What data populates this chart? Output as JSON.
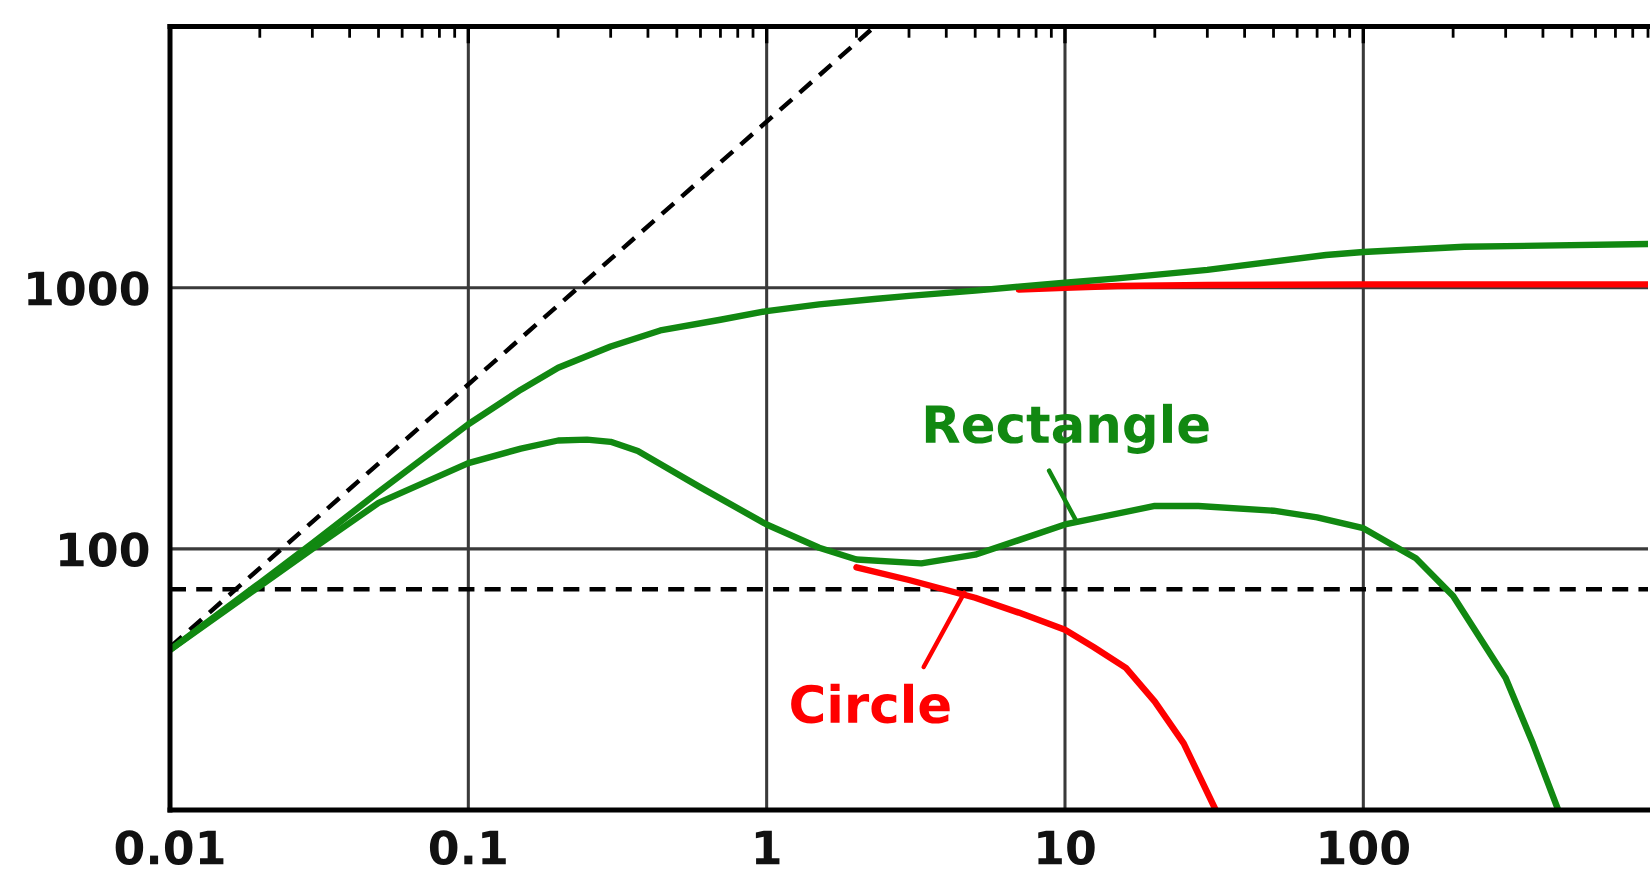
{
  "chart_data": {
    "type": "line",
    "log": "xy",
    "grid": true,
    "xlim": [
      0.01,
      900
    ],
    "ylim": [
      10,
      10000
    ],
    "xticks": [
      0.01,
      0.1,
      1,
      10,
      100
    ],
    "yticks": [
      100,
      1000
    ],
    "series": [
      {
        "color": "#000000",
        "line_style": "dashed",
        "x": [
          0.01,
          2.3
        ],
        "values": [
          42,
          10000
        ]
      },
      {
        "color": "#ff0000",
        "x": [
          7,
          10,
          15,
          30,
          100,
          900
        ],
        "values": [
          985,
          1000,
          1015,
          1025,
          1030,
          1030
        ]
      },
      {
        "color": "#ff0000",
        "x": [
          2,
          3,
          5,
          7,
          10,
          12.5,
          16,
          20,
          25,
          32
        ],
        "values": [
          85,
          76,
          65,
          57,
          49,
          42,
          35,
          26,
          18,
          10
        ]
      },
      {
        "color": "#118811",
        "x": [
          0.01,
          0.02,
          0.03,
          0.05,
          0.1,
          0.15,
          0.2,
          0.3,
          0.44,
          0.7,
          1,
          1.5,
          2.3,
          3,
          5,
          7,
          10,
          15,
          20,
          30,
          75,
          100,
          218,
          900
        ],
        "values": [
          41,
          74,
          105,
          165,
          300,
          407,
          494,
          596,
          686,
          754,
          814,
          863,
          905,
          931,
          975,
          1010,
          1045,
          1086,
          1120,
          1170,
          1335,
          1370,
          1435,
          1470
        ]
      },
      {
        "color": "#118811",
        "x": [
          0.01,
          0.03,
          0.05,
          0.1,
          0.15,
          0.2,
          0.25,
          0.3,
          0.37,
          0.45,
          0.6,
          1,
          1.5,
          2,
          3.3,
          5,
          7,
          10,
          20,
          28,
          50,
          70,
          100,
          130,
          150,
          200,
          300,
          370,
          450
        ],
        "values": [
          41,
          100,
          150,
          213,
          242,
          260,
          262,
          257,
          237,
          208,
          172,
          124,
          101,
          91,
          88,
          95,
          108,
          124,
          146,
          146,
          140,
          132,
          120,
          101,
          92,
          66,
          32,
          18,
          10
        ]
      }
    ],
    "ref_lines": [
      {
        "axis": "y",
        "value": 70,
        "color": "#000000",
        "line_style": "dashed"
      }
    ],
    "annotations": [
      {
        "text": "Rectangle",
        "x": 10.9,
        "y": 128
      },
      {
        "text": "Circle",
        "x": 4.6,
        "y": 68
      }
    ]
  }
}
